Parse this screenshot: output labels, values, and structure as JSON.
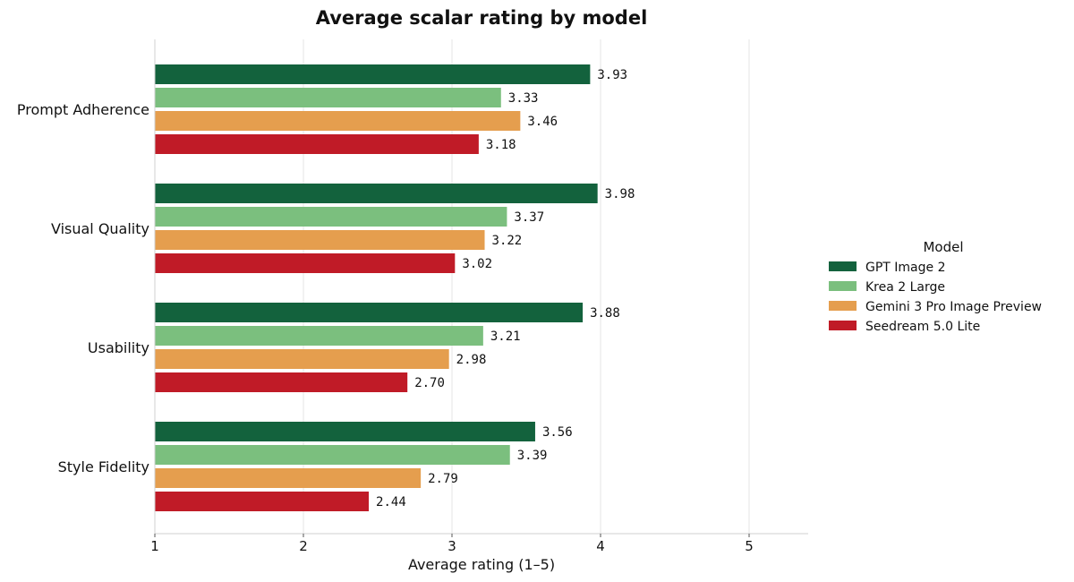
{
  "chart_data": {
    "type": "bar",
    "orientation": "horizontal",
    "title": "Average scalar rating by model",
    "xlabel": "Average rating (1–5)",
    "ylabel": "",
    "xlim": [
      1,
      5.4
    ],
    "xticks": [
      1,
      2,
      3,
      4,
      5
    ],
    "grid": "vertical",
    "categories": [
      "Prompt Adherence",
      "Visual Quality",
      "Usability",
      "Style Fidelity"
    ],
    "series": [
      {
        "name": "GPT Image 2",
        "color": "#13623d",
        "values": [
          3.93,
          3.98,
          3.88,
          3.56
        ]
      },
      {
        "name": "Krea 2 Large",
        "color": "#7bbf7e",
        "values": [
          3.33,
          3.37,
          3.21,
          3.39
        ]
      },
      {
        "name": "Gemini 3 Pro Image Preview",
        "color": "#e59e4e",
        "values": [
          3.46,
          3.22,
          2.98,
          2.79
        ]
      },
      {
        "name": "Seedream 5.0 Lite",
        "color": "#c01b27",
        "values": [
          3.18,
          3.02,
          2.7,
          2.44
        ]
      }
    ],
    "value_labels": true,
    "legend": {
      "title": "Model",
      "placement": "right"
    }
  }
}
